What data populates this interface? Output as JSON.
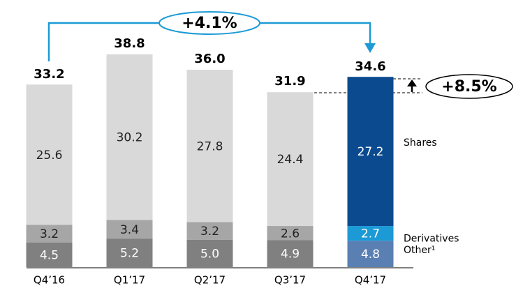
{
  "chart_data": {
    "type": "stacked_bar",
    "categories": [
      "Q4’16",
      "Q1’17",
      "Q2’17",
      "Q3’17",
      "Q4’17"
    ],
    "series": [
      {
        "name": "Other¹",
        "colors": [
          "#808080",
          "#808080",
          "#808080",
          "#808080",
          "#5a7fb3"
        ],
        "values": [
          4.5,
          5.2,
          5.0,
          4.9,
          4.8
        ],
        "value_labels": [
          "4.5",
          "5.2",
          "5.0",
          "4.9",
          "4.8"
        ]
      },
      {
        "name": "Derivatives",
        "colors": [
          "#a6a6a6",
          "#a6a6a6",
          "#a6a6a6",
          "#a6a6a6",
          "#1c9ad6"
        ],
        "values": [
          3.2,
          3.4,
          3.2,
          2.6,
          2.7
        ]
      },
      {
        "name": "Shares",
        "colors": [
          "#d9d9d9",
          "#d9d9d9",
          "#d9d9d9",
          "#d9d9d9",
          "#0b4a8f"
        ],
        "values": [
          25.6,
          30.2,
          27.8,
          24.4,
          27.2
        ]
      }
    ],
    "totals": {
      "values": [
        33.2,
        38.8,
        36.0,
        31.9,
        34.6
      ],
      "value_labels": [
        "33.2",
        "38.8",
        "36.0",
        "31.9",
        "34.6"
      ]
    },
    "annotations": [
      "+4.1%",
      "+8.5%"
    ]
  }
}
